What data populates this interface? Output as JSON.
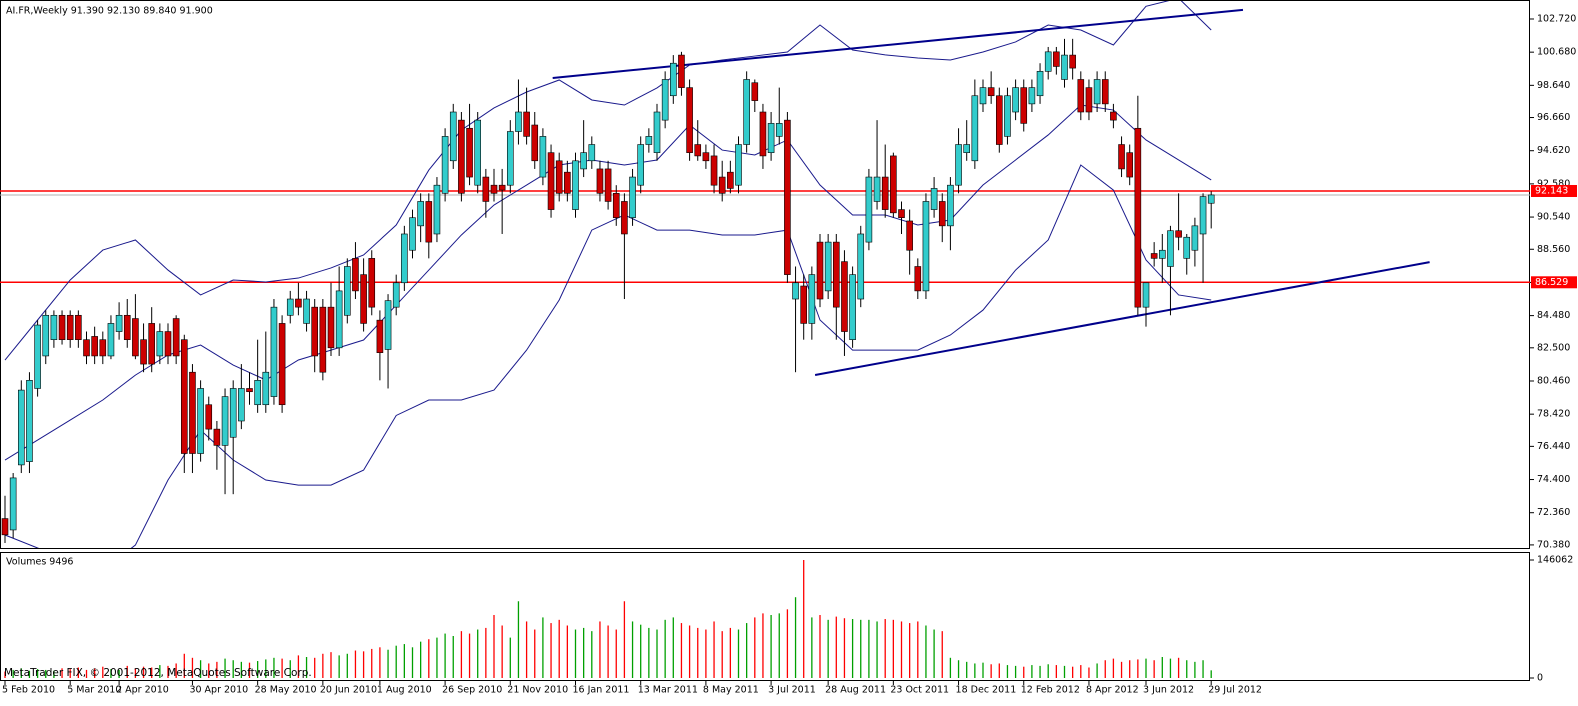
{
  "chart_data": {
    "type": "candlestick",
    "title": "AI.FR,Weekly 91.390 92.130 89.840 91.900",
    "categories": [
      "5 Feb 2010",
      null,
      null,
      null,
      null,
      null,
      null,
      null,
      "5 Mar 2010",
      null,
      null,
      null,
      null,
      null,
      "2 Apr 2010",
      null,
      null,
      null,
      null,
      null,
      null,
      null,
      null,
      "30 Apr 2010",
      null,
      null,
      null,
      null,
      null,
      null,
      null,
      "28 May 2010",
      null,
      null,
      null,
      null,
      null,
      null,
      null,
      "20 Jun 2010",
      null,
      null,
      null,
      null,
      null,
      null,
      "1 Aug 2010",
      null,
      null,
      null,
      null,
      null,
      null,
      null,
      "26 Sep 2010",
      null,
      null,
      null,
      null,
      null,
      null,
      null,
      "21 Nov 2010",
      null,
      null,
      null,
      null,
      null,
      null,
      null,
      "16 Jan 2011",
      null,
      null,
      null,
      null,
      null,
      null,
      null,
      "13 Mar 2011",
      null,
      null,
      null,
      null,
      null,
      null,
      null,
      "8 May 2011",
      null,
      null,
      null,
      null,
      null,
      null,
      null,
      "3 Jul 2011",
      null,
      null,
      null,
      null,
      null,
      null,
      "28 Aug 2011",
      null,
      null,
      null,
      null,
      null,
      null,
      null,
      "23 Oct 2011",
      null,
      null,
      null,
      null,
      null,
      null,
      null,
      "18 Dec 2011",
      null,
      null,
      null,
      null,
      null,
      null,
      null,
      "12 Feb 2012",
      null,
      null,
      null,
      null,
      null,
      null,
      null,
      "8 Apr 2012",
      null,
      null,
      null,
      null,
      null,
      null,
      "3 Jun 2012",
      null,
      null,
      null,
      null,
      null,
      null,
      null,
      "29 Jul 2012"
    ],
    "open": [
      72.0,
      71.3,
      75.3,
      75.5,
      80.0,
      82.0,
      83.0,
      84.5,
      84.5,
      84.5,
      83.0,
      83.2,
      83.0,
      82.0,
      83.5,
      84.5,
      84.3,
      83.0,
      84.0,
      82.0,
      83.5,
      84.3,
      83.0,
      81.0,
      76.0,
      79.0,
      77.5,
      76.5,
      77.0,
      78.0,
      80.0,
      79.0,
      79.0,
      79.5,
      84.0,
      84.5,
      85.5,
      84.0,
      85.0,
      85.0,
      85.0,
      82.5,
      84.5,
      88.0,
      87.0,
      88.0,
      84.2,
      82.4,
      85.0,
      86.5,
      88.5,
      90.0,
      91.5,
      89.5,
      92.0,
      94.0,
      96.5,
      96.0,
      92.5,
      93.0,
      92.5,
      92.5,
      92.5,
      95.8,
      97.0,
      96.2,
      93.0,
      94.5,
      94.0,
      93.3,
      91.0,
      93.5,
      94.0,
      93.5,
      93.5,
      92.0,
      91.5,
      90.5,
      92.5,
      95.0,
      94.5,
      96.5,
      98.0,
      100.5,
      98.5,
      95.0,
      94.5,
      94.3,
      93.0,
      93.3,
      92.5,
      95.0,
      98.8,
      97.0,
      94.5,
      95.5,
      96.5,
      85.5,
      86.3,
      84.0,
      89.0,
      86.0,
      89.0,
      87.8,
      83.0,
      85.5,
      89.0,
      91.5,
      93.0,
      94.3,
      91.0,
      90.3,
      87.5,
      86.0,
      91.0,
      91.5,
      90.0,
      92.5,
      94.5,
      94.0,
      97.5,
      98.5,
      98.0,
      95.5,
      97.0,
      98.5,
      97.5,
      98.0,
      99.5,
      100.7,
      99.0,
      100.5,
      99.0,
      98.5,
      97.5,
      99.0,
      97.0,
      95.0,
      94.5,
      96.0,
      85.0,
      88.3,
      88.0,
      87.5,
      89.7,
      88.0,
      88.5,
      89.5,
      91.39
    ],
    "high": [
      73.4,
      74.8,
      80.5,
      81.0,
      84.2,
      84.8,
      84.8,
      84.8,
      84.8,
      84.8,
      83.5,
      83.8,
      83.5,
      84.5,
      85.3,
      85.5,
      85.8,
      84.0,
      85.0,
      84.0,
      84.0,
      84.5,
      83.3,
      81.5,
      80.5,
      79.5,
      78.0,
      80.0,
      80.5,
      81.5,
      81.0,
      83.0,
      83.5,
      85.5,
      84.5,
      86.0,
      86.5,
      86.0,
      85.5,
      85.5,
      86.5,
      87.5,
      88.0,
      89.0,
      88.0,
      88.5,
      84.8,
      85.8,
      87.0,
      90.0,
      91.0,
      92.0,
      92.0,
      93.0,
      96.0,
      97.5,
      97.0,
      97.5,
      97.0,
      93.5,
      93.5,
      93.5,
      96.5,
      99.0,
      98.5,
      97.0,
      96.0,
      95.0,
      94.5,
      94.0,
      94.5,
      96.5,
      95.5,
      94.0,
      94.0,
      92.5,
      92.0,
      93.5,
      95.5,
      96.0,
      97.5,
      99.5,
      100.5,
      100.7,
      99.0,
      96.5,
      95.0,
      95.0,
      94.0,
      94.0,
      95.5,
      99.5,
      99.0,
      97.5,
      97.0,
      98.5,
      97.0,
      87.5,
      87.0,
      87.5,
      89.5,
      89.5,
      89.5,
      88.5,
      87.5,
      90.0,
      93.5,
      96.5,
      95.0,
      94.5,
      91.5,
      91.0,
      88.0,
      92.0,
      93.0,
      92.0,
      93.0,
      96.0,
      96.5,
      99.0,
      99.0,
      99.5,
      98.5,
      98.5,
      99.0,
      99.0,
      99.0,
      100.0,
      101.0,
      101.0,
      101.5,
      101.5,
      99.5,
      99.0,
      99.5,
      99.5,
      97.5,
      95.5,
      95.0,
      98.0,
      86.5,
      89.0,
      89.5,
      90.0,
      92.0,
      89.5,
      90.5,
      92.0,
      92.13
    ],
    "low": [
      70.5,
      70.8,
      74.8,
      74.8,
      79.5,
      81.5,
      82.5,
      82.7,
      82.5,
      82.5,
      81.5,
      81.5,
      81.5,
      81.8,
      83.0,
      82.5,
      81.8,
      81.0,
      81.0,
      81.5,
      81.5,
      81.5,
      74.8,
      74.8,
      75.5,
      76.8,
      75.0,
      73.5,
      73.5,
      77.5,
      79.0,
      78.5,
      78.5,
      79.0,
      78.5,
      84.0,
      84.5,
      83.5,
      81.0,
      80.5,
      82.0,
      82.0,
      84.0,
      85.5,
      83.5,
      84.5,
      80.5,
      80.0,
      84.5,
      86.0,
      88.0,
      89.0,
      88.0,
      89.0,
      91.5,
      93.5,
      91.5,
      92.5,
      92.0,
      90.5,
      91.5,
      89.5,
      92.0,
      95.0,
      95.0,
      93.5,
      92.5,
      90.5,
      91.5,
      91.5,
      90.5,
      93.0,
      93.5,
      91.5,
      91.0,
      90.0,
      85.5,
      90.0,
      92.0,
      94.5,
      94.0,
      96.0,
      97.5,
      98.0,
      94.0,
      94.0,
      93.5,
      92.0,
      91.5,
      92.0,
      92.0,
      94.5,
      97.0,
      93.5,
      94.0,
      95.0,
      86.5,
      81.0,
      83.0,
      83.0,
      85.0,
      85.5,
      83.0,
      82.0,
      82.5,
      85.0,
      88.5,
      91.0,
      90.5,
      90.5,
      89.5,
      87.0,
      85.5,
      85.5,
      90.5,
      89.0,
      88.5,
      92.0,
      94.0,
      93.5,
      97.0,
      97.5,
      94.5,
      95.0,
      96.5,
      95.8,
      97.0,
      97.5,
      99.0,
      99.3,
      98.5,
      99.0,
      96.5,
      96.5,
      97.0,
      97.0,
      96.0,
      93.0,
      92.5,
      84.5,
      83.8,
      87.5,
      86.5,
      84.5,
      88.5,
      87.0,
      87.5,
      86.5,
      89.84
    ],
    "close": [
      71.0,
      74.5,
      79.9,
      80.5,
      83.9,
      84.5,
      84.5,
      83.0,
      83.0,
      83.0,
      82.0,
      82.0,
      82.0,
      84.0,
      84.5,
      83.0,
      82.0,
      81.5,
      81.5,
      83.5,
      82.0,
      82.0,
      76.0,
      76.0,
      80.0,
      77.5,
      76.5,
      79.5,
      80.0,
      80.0,
      79.8,
      80.5,
      81.0,
      85.0,
      79.0,
      85.5,
      85.0,
      85.5,
      82.0,
      81.0,
      82.5,
      86.0,
      87.5,
      86.0,
      84.0,
      85.0,
      82.2,
      85.4,
      86.5,
      89.5,
      90.5,
      91.5,
      89.0,
      92.5,
      95.5,
      97.0,
      92.0,
      93.0,
      96.5,
      91.5,
      92.0,
      92.2,
      95.8,
      97.0,
      95.5,
      94.0,
      95.5,
      91.0,
      92.0,
      92.0,
      94.0,
      94.5,
      95.0,
      92.0,
      91.5,
      90.5,
      89.5,
      93.0,
      95.0,
      95.5,
      97.0,
      99.0,
      100.0,
      98.5,
      94.5,
      94.3,
      94.0,
      92.5,
      92.0,
      92.3,
      95.0,
      99.0,
      97.7,
      94.3,
      96.3,
      96.3,
      87.0,
      86.5,
      84.0,
      87.0,
      85.5,
      89.0,
      85.0,
      83.5,
      87.0,
      89.5,
      93.0,
      93.0,
      91.0,
      90.8,
      90.5,
      88.5,
      86.0,
      91.5,
      92.3,
      90.0,
      92.5,
      95.0,
      95.0,
      98.0,
      98.5,
      98.0,
      95.0,
      98.0,
      98.5,
      96.3,
      98.5,
      99.5,
      100.7,
      99.8,
      100.5,
      99.7,
      97.0,
      97.0,
      99.0,
      97.5,
      96.5,
      93.5,
      93.0,
      85.0,
      86.5,
      88.0,
      88.5,
      89.7,
      89.3,
      89.3,
      90.0,
      91.8,
      91.9
    ],
    "up_color": "#33cccc",
    "down_color": "#cc0000",
    "ylim": [
      70.19,
      103.58
    ],
    "yticks": [
      {
        "value": 102.72,
        "label": "102.720"
      },
      {
        "value": 100.68,
        "label": "100.680"
      },
      {
        "value": 98.64,
        "label": "98.640"
      },
      {
        "value": 96.66,
        "label": "96.660"
      },
      {
        "value": 94.62,
        "label": "94.620"
      },
      {
        "value": 92.58,
        "label": "92.580"
      },
      {
        "value": 90.54,
        "label": "90.540"
      },
      {
        "value": 88.56,
        "label": "88.560"
      },
      {
        "value": 86.52,
        "label": "86.520"
      },
      {
        "value": 84.48,
        "label": "84.480"
      },
      {
        "value": 82.5,
        "label": "82.500"
      },
      {
        "value": 80.46,
        "label": "80.460"
      },
      {
        "value": 78.42,
        "label": "78.420"
      },
      {
        "value": 76.44,
        "label": "76.440"
      },
      {
        "value": 74.4,
        "label": "74.400"
      },
      {
        "value": 72.36,
        "label": "72.360"
      },
      {
        "value": 70.38,
        "label": "70.380"
      }
    ],
    "bands": {
      "color": "#1a1a8c",
      "x": [
        0,
        4,
        8,
        12,
        16,
        20,
        24,
        28,
        32,
        36,
        40,
        44,
        48,
        52,
        56,
        60,
        64,
        68,
        72,
        76,
        80,
        84,
        88,
        92,
        96,
        100,
        104,
        108,
        112,
        116,
        120,
        124,
        128,
        132,
        136,
        140,
        144,
        148
      ],
      "upper": [
        81.75,
        84.21,
        86.67,
        88.51,
        89.13,
        87.28,
        85.75,
        86.67,
        86.55,
        86.79,
        87.41,
        88.21,
        90.05,
        93.43,
        95.89,
        97.25,
        98.23,
        98.97,
        97.74,
        97.43,
        98.48,
        99.89,
        100.2,
        100.44,
        100.69,
        102.35,
        100.81,
        100.51,
        100.32,
        100.2,
        100.69,
        101.31,
        102.35,
        102.04,
        101.12,
        103.5,
        104.0,
        102.04
      ],
      "middle": [
        75.6,
        76.83,
        78.06,
        79.29,
        80.82,
        82.06,
        82.67,
        81.44,
        80.52,
        81.75,
        82.36,
        82.98,
        85.13,
        87.28,
        89.44,
        91.28,
        92.51,
        93.74,
        94.05,
        93.74,
        94.05,
        96.2,
        94.66,
        94.36,
        95.28,
        92.51,
        90.67,
        90.67,
        90.05,
        90.36,
        92.51,
        94.05,
        95.59,
        97.43,
        97.12,
        95.28,
        94.05,
        92.82
      ],
      "lower": [
        70.99,
        70.19,
        69.45,
        68.83,
        70.37,
        74.37,
        77.44,
        75.6,
        74.37,
        74.06,
        74.06,
        74.98,
        78.34,
        79.29,
        79.29,
        79.9,
        82.36,
        85.44,
        89.74,
        90.67,
        89.74,
        89.74,
        89.44,
        89.44,
        89.74,
        84.21,
        82.36,
        82.36,
        82.36,
        83.29,
        84.82,
        87.28,
        89.13,
        93.74,
        92.2,
        87.9,
        85.75,
        85.44
      ]
    },
    "trendline_color": "#00008b",
    "trendlines": [
      {
        "x": [
          67.2,
          151.9
        ],
        "y": [
          99.09,
          103.28
        ]
      },
      {
        "x": [
          99.4,
          174.8
        ],
        "y": [
          80.83,
          87.77
        ]
      }
    ],
    "hline_color": "#ff0000",
    "hlines": [
      92.143,
      86.529
    ],
    "volume": {
      "title": "Volumes 9496",
      "up_color": "#00a000",
      "down_color": "#ff0000",
      "ylim": [
        0,
        146062
      ],
      "yticks": [
        0,
        146062
      ],
      "values": [
        8000,
        10000,
        12000,
        9000,
        11000,
        10000,
        9000,
        12000,
        11000,
        13000,
        10000,
        12000,
        14000,
        11000,
        10000,
        15000,
        12000,
        14000,
        13000,
        16000,
        15000,
        18000,
        30000,
        25000,
        22000,
        18000,
        20000,
        24000,
        22000,
        20000,
        19000,
        21000,
        23000,
        25000,
        24000,
        22000,
        28000,
        26000,
        25000,
        30000,
        32000,
        28000,
        30000,
        34000,
        33000,
        36000,
        38000,
        35000,
        40000,
        42000,
        38000,
        45000,
        48000,
        50000,
        55000,
        52000,
        58000,
        55000,
        60000,
        62000,
        78000,
        65000,
        50000,
        95000,
        70000,
        60000,
        75000,
        68000,
        72000,
        65000,
        60000,
        62000,
        58000,
        70000,
        65000,
        60000,
        95000,
        70000,
        66000,
        62000,
        60000,
        72000,
        75000,
        68000,
        65000,
        62000,
        60000,
        70000,
        58000,
        62000,
        60000,
        68000,
        75000,
        80000,
        78000,
        80000,
        85000,
        100000,
        146062,
        75000,
        78000,
        72000,
        76000,
        74000,
        73000,
        72000,
        72000,
        70000,
        73000,
        72000,
        70000,
        68000,
        70000,
        65000,
        60000,
        58000,
        25000,
        22000,
        20000,
        18000,
        19000,
        17000,
        18000,
        16000,
        15000,
        14000,
        16000,
        15000,
        17000,
        16000,
        15000,
        14000,
        16000,
        13000,
        18000,
        22000,
        24000,
        20000,
        22000,
        23000,
        24000,
        22000,
        26000,
        24000,
        25000,
        22000,
        20000,
        22000,
        9496
      ]
    }
  },
  "footer": "MetaTrader FIX, © 2001-2012, MetaQuotes Software Corp."
}
